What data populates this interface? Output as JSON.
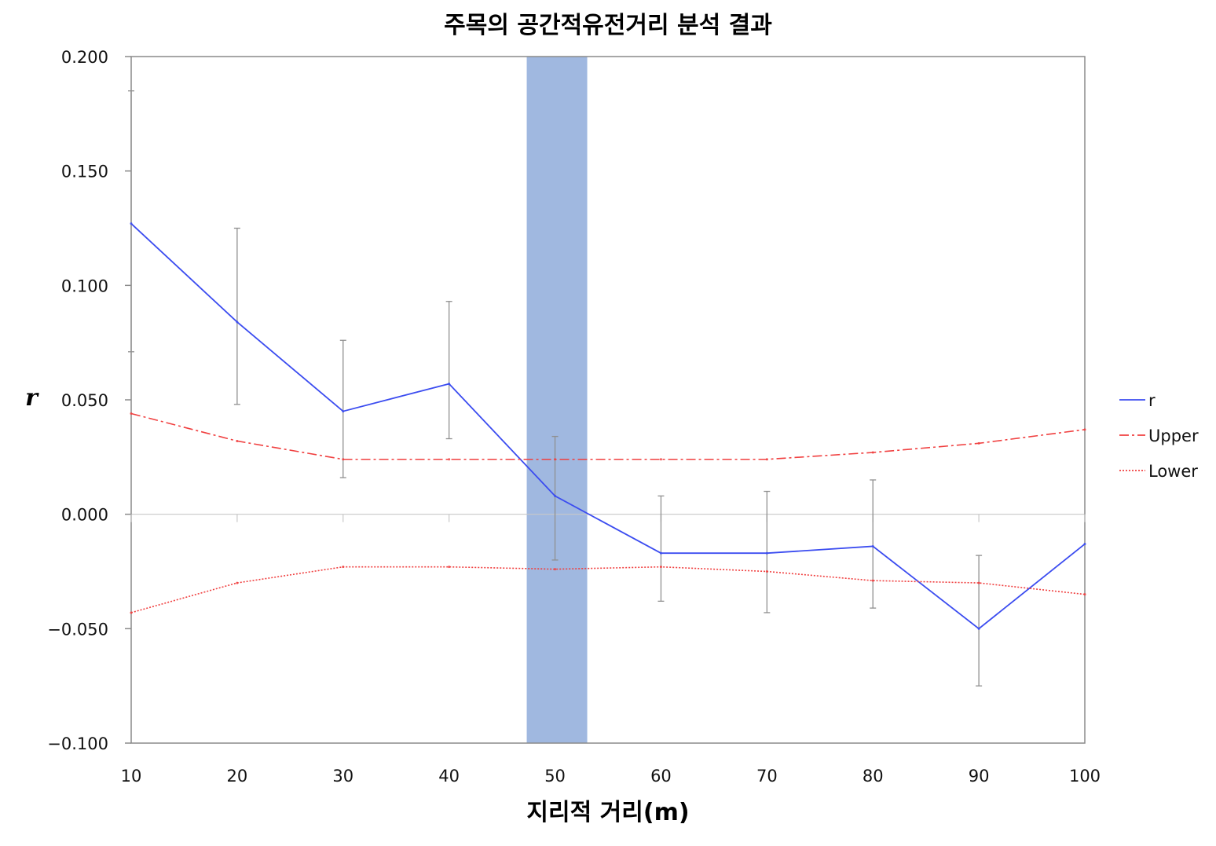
{
  "chart_data": {
    "type": "line",
    "title": "주목의 공간적유전거리 분석 결과",
    "xlabel": "지리적 거리(m)",
    "ylabel": "r",
    "x": [
      10,
      20,
      30,
      40,
      50,
      60,
      70,
      80,
      90,
      100
    ],
    "xlim": [
      10,
      100
    ],
    "ylim": [
      -0.1,
      0.2
    ],
    "yticks": [
      "0.200",
      "0.150",
      "0.100",
      "0.050",
      "0.000",
      "−0.050",
      "−0.100"
    ],
    "ytick_values": [
      0.2,
      0.15,
      0.1,
      0.05,
      0.0,
      -0.05,
      -0.1
    ],
    "xticks": [
      "10",
      "20",
      "30",
      "40",
      "50",
      "60",
      "70",
      "80",
      "90",
      "100"
    ],
    "highlight_x": 50,
    "highlight_color": "#a0b8e0",
    "legend_position": "right",
    "series": [
      {
        "name": "r",
        "color": "#3b4cf0",
        "style": "solid",
        "values": [
          0.127,
          0.084,
          0.045,
          0.057,
          0.008,
          -0.017,
          -0.017,
          -0.014,
          -0.05,
          -0.013
        ],
        "error_high": [
          0.185,
          0.125,
          0.076,
          0.093,
          0.034,
          0.008,
          0.01,
          0.015,
          -0.018,
          null
        ],
        "error_low": [
          0.071,
          0.048,
          0.016,
          0.033,
          -0.02,
          -0.038,
          -0.043,
          -0.041,
          -0.075,
          null
        ]
      },
      {
        "name": "Upper",
        "color": "#f04040",
        "style": "dashdot",
        "values": [
          0.044,
          0.032,
          0.024,
          0.024,
          0.024,
          0.024,
          0.024,
          0.027,
          0.031,
          0.037
        ]
      },
      {
        "name": "Lower",
        "color": "#f04040",
        "style": "dotted",
        "values": [
          -0.043,
          -0.03,
          -0.023,
          -0.023,
          -0.024,
          -0.023,
          -0.025,
          -0.029,
          -0.03,
          -0.035
        ]
      }
    ]
  }
}
